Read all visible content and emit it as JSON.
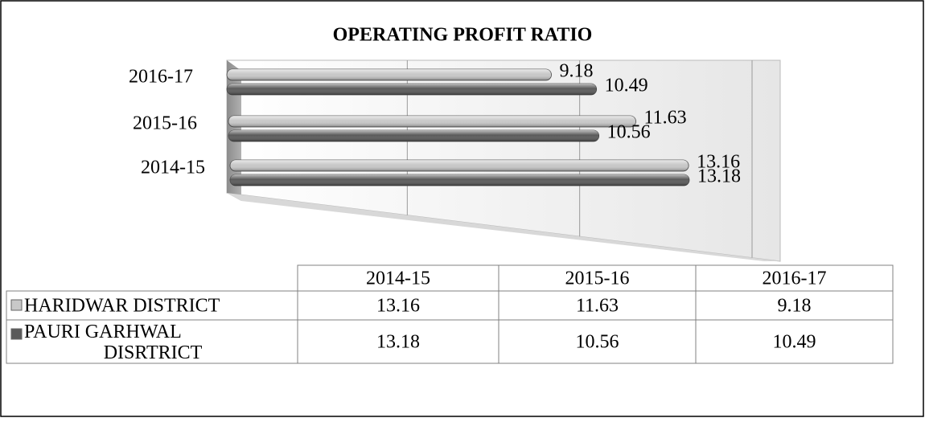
{
  "chart_data": {
    "type": "bar",
    "orientation": "horizontal",
    "title": "OPERATING PROFIT RATIO",
    "categories": [
      "2014-15",
      "2015-16",
      "2016-17"
    ],
    "series": [
      {
        "name": "HARIDWAR DISTRICT",
        "color": "#c8c8c8",
        "values": [
          13.16,
          11.63,
          9.18
        ]
      },
      {
        "name": "PAURI GARHWAL DISRTRICT",
        "color": "#5a5a5a",
        "values": [
          13.18,
          10.56,
          10.49
        ]
      }
    ],
    "xlim": [
      0,
      15
    ],
    "xticks": [
      0,
      5,
      10,
      15
    ],
    "grid": true,
    "legend": "table"
  }
}
